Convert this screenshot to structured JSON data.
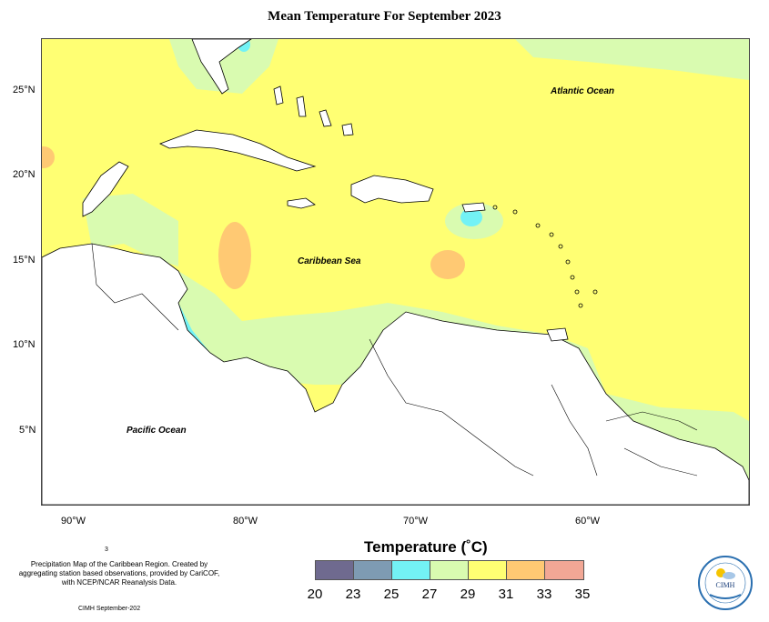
{
  "title": "Mean Temperature For September 2023",
  "map": {
    "lat_ticks": [
      "25°N",
      "20°N",
      "15°N",
      "10°N",
      "5°N"
    ],
    "lon_ticks": [
      "90°W",
      "80°W",
      "70°W",
      "60°W"
    ],
    "regions": {
      "atlantic": "Atlantic Ocean",
      "caribbean": "Caribbean Sea",
      "pacific": "Pacific Ocean"
    }
  },
  "legend": {
    "title": "Temperature (˚C)",
    "breaks": [
      "20",
      "23",
      "25",
      "27",
      "29",
      "31",
      "33",
      "35"
    ],
    "colors": [
      "#6f6a8f",
      "#7e9bb3",
      "#73f2f5",
      "#d9fbb0",
      "#ffff73",
      "#ffc973",
      "#f2a795"
    ]
  },
  "footer": {
    "page_number": "3",
    "note": "Precipitation Map of the Caribbean Region. Created by aggregating station based observations, provided by CariCOF, with NCEP/NCAR Reanalysis Data.",
    "credit": "CIMH September-202",
    "logo_text": "CIMH"
  }
}
